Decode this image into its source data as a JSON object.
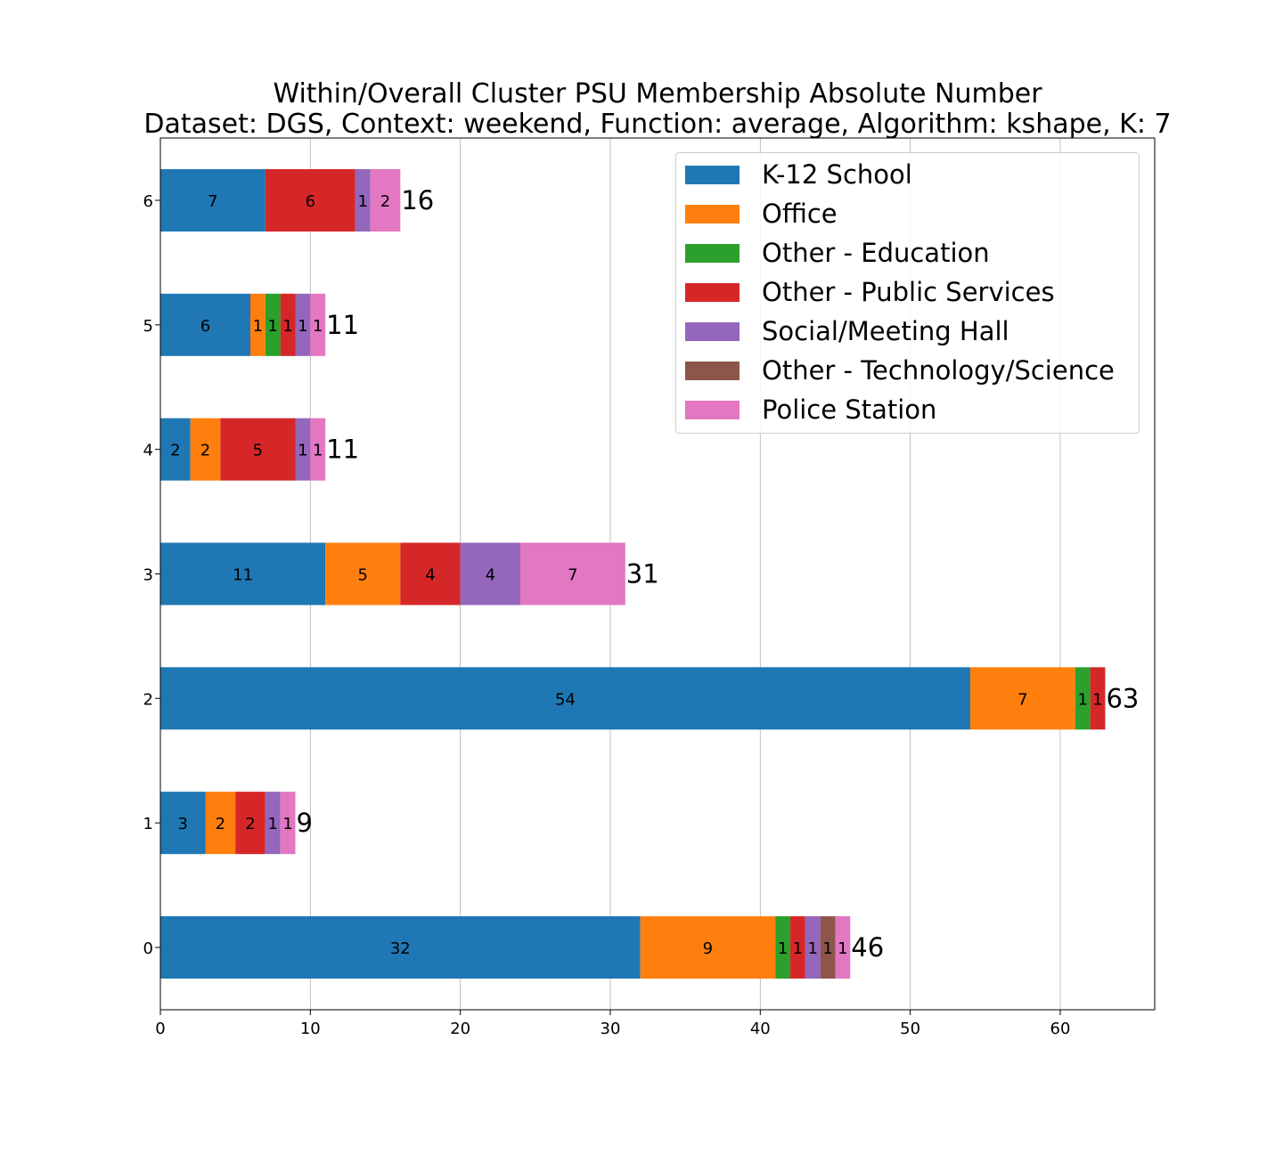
{
  "title": {
    "line1": "Within/Overall Cluster PSU Membership Absolute Number",
    "line2": "Dataset: DGS, Context: weekend, Function: average, Algorithm: kshape, K: 7"
  },
  "chart_data": {
    "type": "bar",
    "orientation": "horizontal",
    "stacked": true,
    "categories": [
      "0",
      "1",
      "2",
      "3",
      "4",
      "5",
      "6"
    ],
    "series": [
      {
        "name": "K-12 School",
        "color": "#1f77b4",
        "values": [
          32,
          3,
          54,
          11,
          2,
          6,
          7
        ]
      },
      {
        "name": "Office",
        "color": "#ff7f0e",
        "values": [
          9,
          2,
          7,
          5,
          2,
          1,
          0
        ]
      },
      {
        "name": "Other - Education",
        "color": "#2ca02c",
        "values": [
          1,
          0,
          1,
          0,
          0,
          1,
          0
        ]
      },
      {
        "name": "Other - Public Services",
        "color": "#d62728",
        "values": [
          1,
          2,
          1,
          4,
          5,
          1,
          6
        ]
      },
      {
        "name": "Social/Meeting Hall",
        "color": "#9467bd",
        "values": [
          1,
          1,
          0,
          4,
          1,
          1,
          1
        ]
      },
      {
        "name": "Other - Technology/Science",
        "color": "#8c564b",
        "values": [
          1,
          0,
          0,
          0,
          0,
          0,
          0
        ]
      },
      {
        "name": "Police Station",
        "color": "#e377c2",
        "values": [
          1,
          1,
          0,
          7,
          1,
          1,
          2
        ]
      }
    ],
    "totals": [
      46,
      9,
      63,
      31,
      11,
      11,
      16
    ],
    "xticks": [
      "0",
      "10",
      "20",
      "30",
      "40",
      "50",
      "60"
    ],
    "xlim": [
      0,
      66.3
    ],
    "grid": "vertical",
    "legend_position": "top-right"
  }
}
